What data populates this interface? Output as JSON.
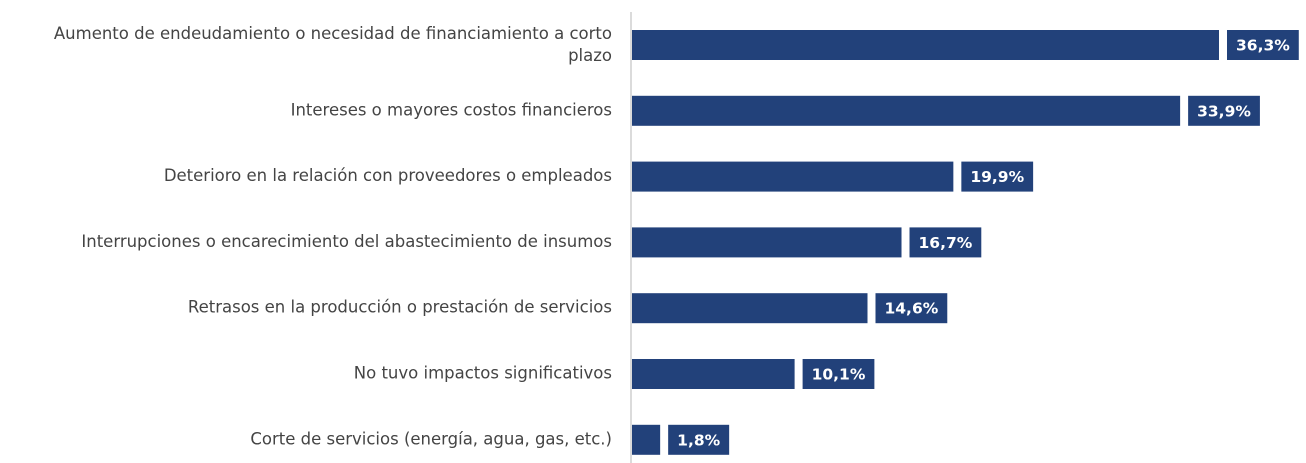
{
  "chart_data": {
    "type": "barh",
    "categories": [
      "Aumento de endeudamiento o necesidad de financiamiento a corto plazo",
      "Intereses o mayores costos financieros",
      "Deterioro en la relación con proveedores o empleados",
      "Interrupciones o encarecimiento del abastecimiento de insumos",
      "Retrasos en la producción o prestación de servicios",
      "No tuvo impactos significativos",
      "Corte de servicios (energía, agua, gas, etc.)"
    ],
    "values": [
      36.3,
      33.9,
      19.9,
      16.7,
      14.6,
      10.1,
      1.8
    ],
    "value_labels": [
      "36,3%",
      "33,9%",
      "19,9%",
      "16,7%",
      "14,6%",
      "10,1%",
      "1,8%"
    ],
    "color": "#22417a"
  }
}
